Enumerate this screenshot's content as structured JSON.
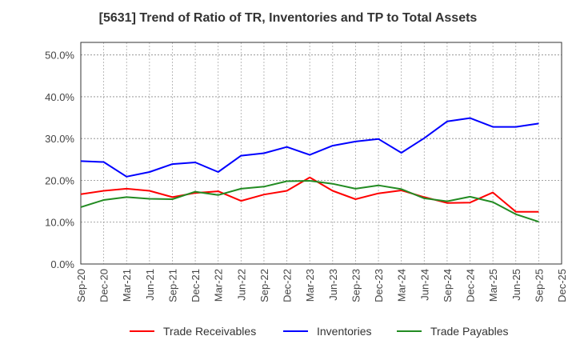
{
  "chart_data": {
    "type": "line",
    "title": "[5631]  Trend of Ratio of TR, Inventories and TP to Total Assets",
    "xlabel": "",
    "ylabel": "",
    "x_tick_labels": [
      "Sep-20",
      "Dec-20",
      "Mar-21",
      "Jun-21",
      "Sep-21",
      "Dec-21",
      "Mar-22",
      "Jun-22",
      "Sep-22",
      "Dec-22",
      "Mar-23",
      "Jun-23",
      "Sep-23",
      "Dec-23",
      "Mar-24",
      "Jun-24",
      "Sep-24",
      "Dec-24",
      "Mar-25",
      "Jun-25",
      "Sep-25",
      "Dec-25"
    ],
    "x": [
      "Sep-20",
      "Dec-20",
      "Mar-21",
      "Jun-21",
      "Sep-21",
      "Dec-21",
      "Mar-22",
      "Jun-22",
      "Sep-22",
      "Dec-22",
      "Mar-23",
      "Jun-23",
      "Sep-23",
      "Dec-23",
      "Mar-24",
      "Jun-24",
      "Sep-24",
      "Dec-24",
      "Mar-25",
      "Jun-25",
      "Sep-25"
    ],
    "y_tick_labels": [
      "0.0%",
      "10.0%",
      "20.0%",
      "30.0%",
      "40.0%",
      "50.0%"
    ],
    "y_ticks": [
      0,
      10,
      20,
      30,
      40,
      50
    ],
    "ylim": [
      0,
      53
    ],
    "grid": true,
    "legend_position": "bottom",
    "series": [
      {
        "name": "Trade Receivables",
        "color": "#ff0000",
        "values": [
          16.7,
          17.5,
          18.0,
          17.5,
          16.0,
          17.0,
          17.4,
          15.1,
          16.6,
          17.5,
          20.7,
          17.5,
          15.5,
          16.9,
          17.6,
          16.0,
          14.6,
          14.7,
          17.1,
          12.5,
          12.5
        ]
      },
      {
        "name": "Inventories",
        "color": "#0000ff",
        "values": [
          24.6,
          24.4,
          20.9,
          22.0,
          23.9,
          24.3,
          22.0,
          25.9,
          26.5,
          28.0,
          26.1,
          28.3,
          29.3,
          29.9,
          26.6,
          30.1,
          34.1,
          34.9,
          32.8,
          32.8,
          33.6
        ]
      },
      {
        "name": "Trade Payables",
        "color": "#228b22",
        "values": [
          13.6,
          15.3,
          16.0,
          15.6,
          15.5,
          17.3,
          16.5,
          18.0,
          18.5,
          19.8,
          19.9,
          19.2,
          18.0,
          18.8,
          17.9,
          15.7,
          15.0,
          16.1,
          14.8,
          11.9,
          10.1
        ]
      }
    ]
  }
}
